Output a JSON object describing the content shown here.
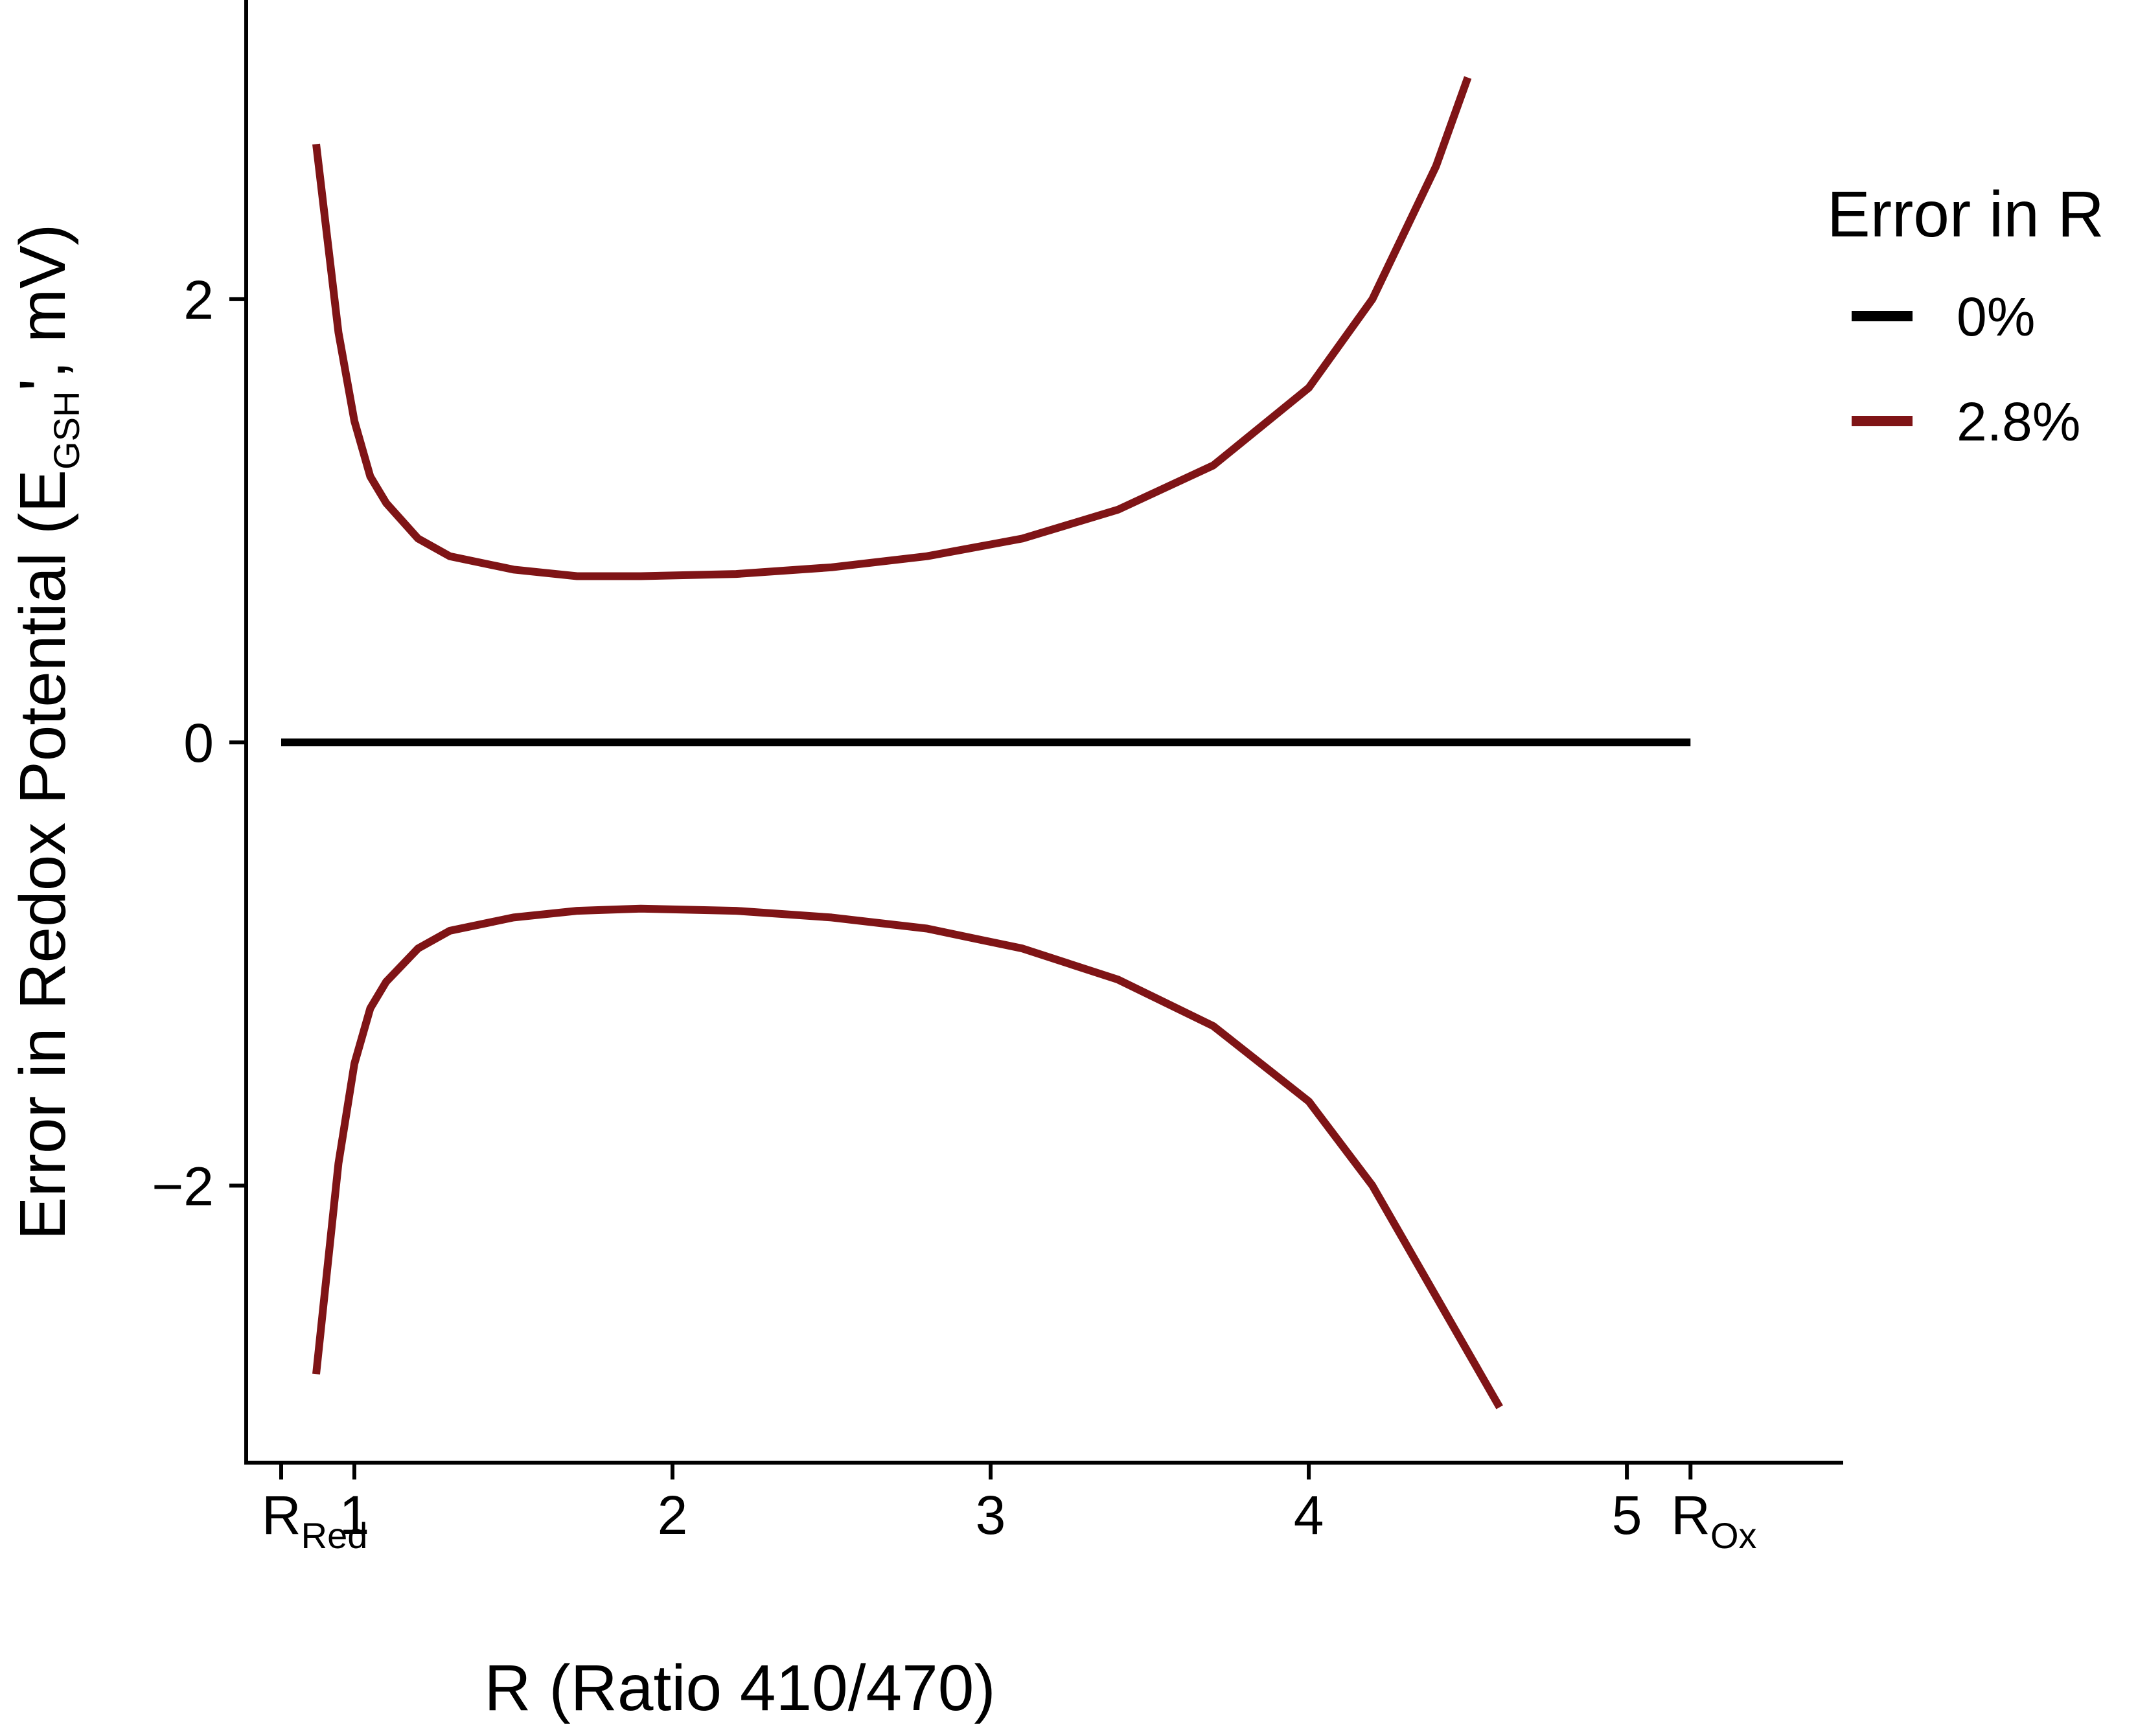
{
  "chart_data": {
    "type": "line",
    "title": "",
    "xlabel": "R (Ratio 410/470)",
    "ylabel": {
      "main": "Error in Redox Potential (E",
      "sub": "GSH",
      "after": "', mV)"
    },
    "xlim": [
      0.66,
      5.68
    ],
    "ylim": [
      -3.25,
      3.35
    ],
    "x_ticks": [
      {
        "value": 0.77,
        "label": "R",
        "sub": "Red"
      },
      {
        "value": 1,
        "label": "1"
      },
      {
        "value": 2,
        "label": "2"
      },
      {
        "value": 3,
        "label": "3"
      },
      {
        "value": 4,
        "label": "4"
      },
      {
        "value": 5,
        "label": "5"
      },
      {
        "value": 5.2,
        "label": "R",
        "sub": "Ox"
      }
    ],
    "y_ticks": [
      {
        "value": -2,
        "label": "−2"
      },
      {
        "value": 0,
        "label": "0"
      },
      {
        "value": 2,
        "label": "2"
      }
    ],
    "legend": {
      "title": "Error in R",
      "position": "right"
    },
    "grid": false,
    "series": [
      {
        "name": "0%",
        "color": "#000000",
        "x": [
          0.77,
          1.5,
          2.5,
          3.5,
          4.5,
          5.2
        ],
        "y": [
          0,
          0,
          0,
          0,
          0,
          0
        ]
      },
      {
        "name": "2.8%",
        "color": "#7f1416",
        "x": [
          0.88,
          0.95,
          1.0,
          1.05,
          1.1,
          1.2,
          1.3,
          1.5,
          1.7,
          1.9,
          2.2,
          2.5,
          2.8,
          3.1,
          3.4,
          3.7,
          4.0,
          4.2,
          4.4,
          4.5
        ],
        "y": [
          2.7,
          1.85,
          1.45,
          1.2,
          1.08,
          0.92,
          0.84,
          0.78,
          0.75,
          0.75,
          0.76,
          0.79,
          0.84,
          0.92,
          1.05,
          1.25,
          1.6,
          2.0,
          2.6,
          3.0
        ]
      },
      {
        "name": "2.8%",
        "color": "#7f1416",
        "x": [
          0.88,
          0.95,
          1.0,
          1.05,
          1.1,
          1.2,
          1.3,
          1.5,
          1.7,
          1.9,
          2.2,
          2.5,
          2.8,
          3.1,
          3.4,
          3.7,
          4.0,
          4.2,
          4.4,
          4.6
        ],
        "y": [
          -2.85,
          -1.9,
          -1.45,
          -1.2,
          -1.08,
          -0.93,
          -0.85,
          -0.79,
          -0.76,
          -0.75,
          -0.76,
          -0.79,
          -0.84,
          -0.93,
          -1.07,
          -1.28,
          -1.62,
          -2.0,
          -2.5,
          -3.0
        ]
      }
    ]
  }
}
